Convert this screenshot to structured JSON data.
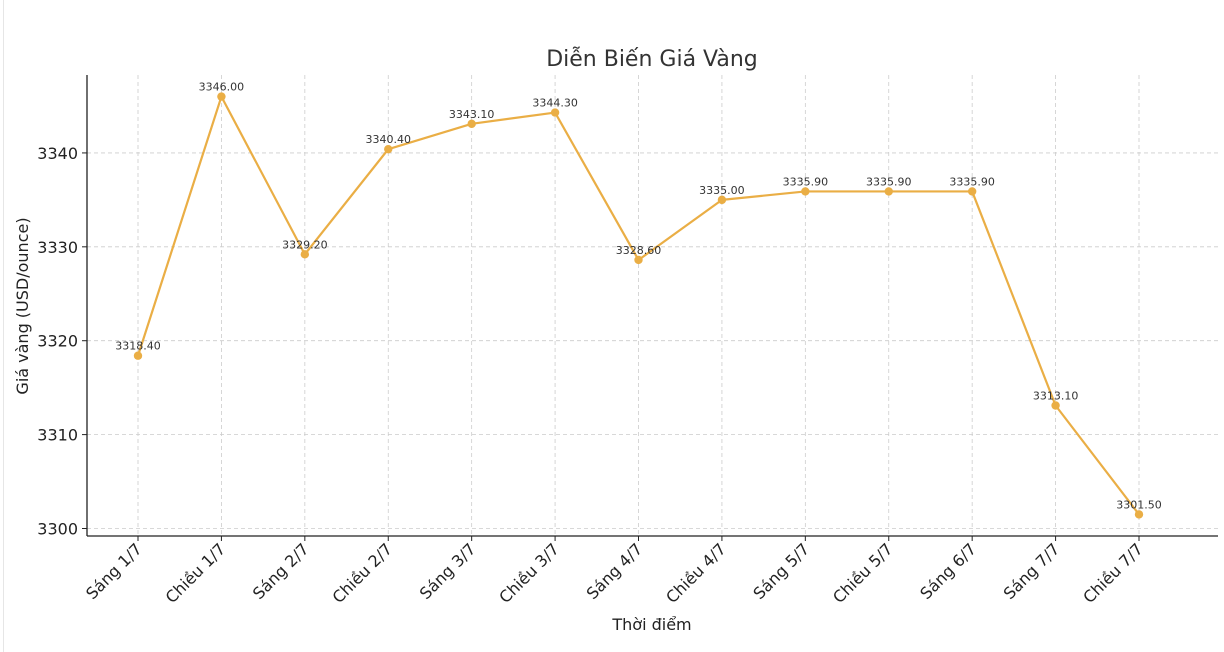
{
  "chart_data": {
    "type": "line",
    "title": "Diễn Biến Giá Vàng",
    "xlabel": "Thời điểm",
    "ylabel": "Giá vàng (USD/ounce)",
    "categories": [
      "Sáng 1/7",
      "Chiều 1/7",
      "Sáng 2/7",
      "Chiều 2/7",
      "Sáng 3/7",
      "Chiều 3/7",
      "Sáng 4/7",
      "Chiều 4/7",
      "Sáng 5/7",
      "Chiều 5/7",
      "Sáng 6/7",
      "Sáng 7/7",
      "Chiều 7/7"
    ],
    "series": [
      {
        "values": [
          3318.4,
          3346.0,
          3329.2,
          3340.4,
          3343.1,
          3344.3,
          3328.6,
          3335.0,
          3335.9,
          3335.9,
          3335.9,
          3313.1,
          3301.5
        ],
        "data_labels": [
          "3318.40",
          "3346.00",
          "3329.20",
          "3340.40",
          "3343.10",
          "3344.30",
          "3328.60",
          "3335.00",
          "3335.90",
          "3335.90",
          "3335.90",
          "3313.10",
          "3301.50"
        ]
      }
    ],
    "yticks": [
      3300,
      3310,
      3320,
      3330,
      3340
    ],
    "ylim": [
      3299.2,
      3348.3
    ],
    "grid": true,
    "grid_style": "dashed",
    "colors": {
      "line": "#EAAE45",
      "marker": "#EAAE45",
      "grid": "#cccccc",
      "axis": "#222222"
    }
  }
}
